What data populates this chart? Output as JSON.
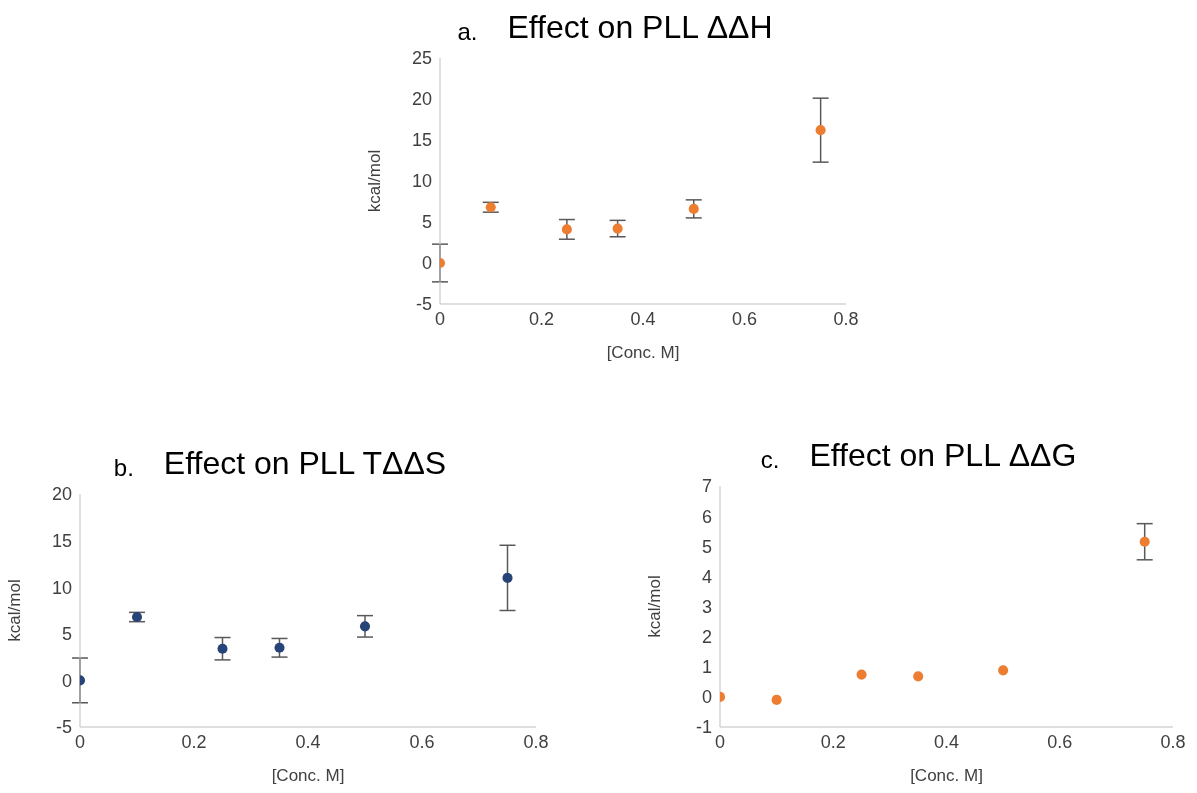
{
  "chart_data": [
    {
      "type": "scatter",
      "title": "Effect on PLL ΔΔH",
      "annotations": [
        "a."
      ],
      "xlabel": "[Conc. M]",
      "ylabel": "kcal/mol",
      "xlim": [
        0,
        0.8
      ],
      "xticks": [
        0,
        0.2,
        0.4,
        0.6,
        0.8
      ],
      "ylim": [
        -5,
        25
      ],
      "yticks": [
        -5,
        0,
        5,
        10,
        15,
        20,
        25
      ],
      "grid": false,
      "legend": false,
      "marker": "circle",
      "series": [
        {
          "x": [
            0,
            0.1,
            0.25,
            0.35,
            0.5,
            0.75
          ],
          "values": [
            0,
            6.8,
            4.1,
            4.2,
            6.6,
            16.2
          ],
          "errors": [
            2.3,
            0.6,
            1.2,
            1.0,
            1.1,
            3.9
          ],
          "color": "#ed7d31"
        }
      ]
    },
    {
      "type": "scatter",
      "title": "Effect on PLL TΔΔS",
      "annotations": [
        "b."
      ],
      "xlabel": "[Conc. M]",
      "ylabel": "kcal/mol",
      "xlim": [
        0,
        0.8
      ],
      "xticks": [
        0,
        0.2,
        0.4,
        0.6,
        0.8
      ],
      "ylim": [
        -5,
        20
      ],
      "yticks": [
        -5,
        0,
        5,
        10,
        15,
        20
      ],
      "grid": false,
      "legend": false,
      "marker": "circle",
      "series": [
        {
          "x": [
            0,
            0.1,
            0.25,
            0.35,
            0.5,
            0.75
          ],
          "values": [
            0,
            6.8,
            3.4,
            3.5,
            5.8,
            11.0
          ],
          "errors": [
            2.4,
            0.5,
            1.2,
            1.0,
            1.15,
            3.5
          ],
          "color": "#264478"
        }
      ]
    },
    {
      "type": "scatter",
      "title": "Effect on PLL ΔΔG",
      "annotations": [
        "c."
      ],
      "xlabel": "[Conc. M]",
      "ylabel": "kcal/mol",
      "xlim": [
        0,
        0.8
      ],
      "xticks": [
        0,
        0.2,
        0.4,
        0.6,
        0.8
      ],
      "ylim": [
        -1,
        7
      ],
      "yticks": [
        -1,
        0,
        1,
        2,
        3,
        4,
        5,
        6,
        7
      ],
      "grid": false,
      "legend": false,
      "marker": "circle",
      "series": [
        {
          "x": [
            0,
            0.1,
            0.25,
            0.35,
            0.5,
            0.75
          ],
          "values": [
            0,
            -0.1,
            0.74,
            0.68,
            0.88,
            5.15
          ],
          "errors": [
            null,
            null,
            null,
            null,
            null,
            0.6
          ],
          "color": "#ed7d31"
        }
      ]
    }
  ]
}
